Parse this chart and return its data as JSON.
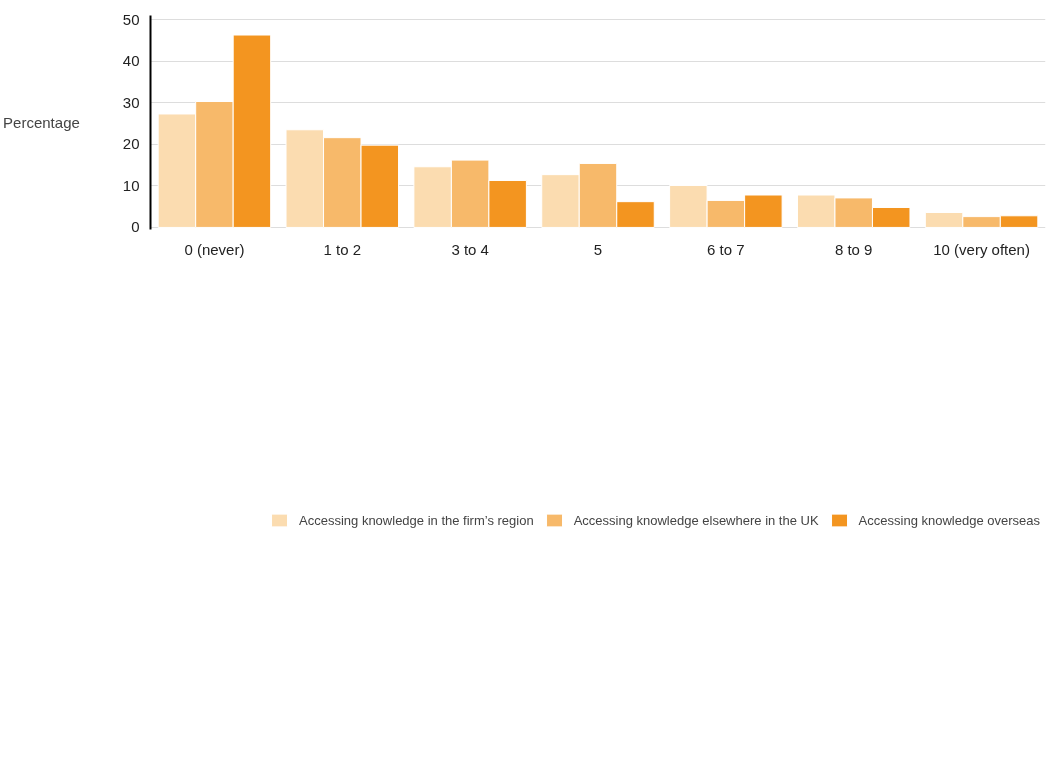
{
  "chart_data": {
    "type": "bar",
    "ylabel": "Percentage",
    "categories": [
      "0 (never)",
      "1 to 2",
      "3 to 4",
      "5",
      "6 to 7",
      "8 to 9",
      "10 (very often)"
    ],
    "series": [
      {
        "name": "Accessing knowledge in the firm’s region",
        "color": "#fbdcb0",
        "values": [
          27.3,
          23.5,
          14.6,
          12.7,
          10.1,
          7.8,
          3.6
        ]
      },
      {
        "name": "Accessing knowledge elsewhere in the UK",
        "color": "#f7b96a",
        "values": [
          30.3,
          21.6,
          16.2,
          15.4,
          6.5,
          7.1,
          2.6
        ]
      },
      {
        "name": "Accessing knowledge overseas",
        "color": "#f39520",
        "values": [
          46.3,
          19.8,
          11.3,
          6.2,
          7.8,
          4.8,
          2.8
        ]
      }
    ],
    "ylim": [
      -0.5,
      51
    ],
    "yticks": [
      0,
      10,
      20,
      30,
      40,
      50
    ],
    "grid": "y",
    "legend": "bottom"
  }
}
